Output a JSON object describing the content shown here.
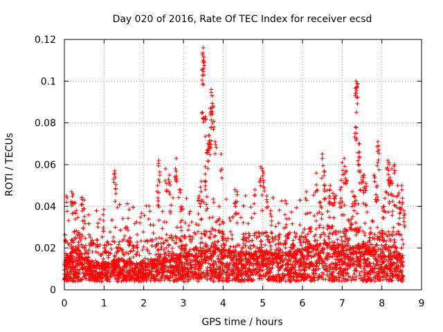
{
  "chart_data": {
    "type": "scatter",
    "title": "Day 020 of 2016, Rate Of TEC Index for receiver ecsd",
    "xlabel": "GPS time / hours",
    "ylabel": "ROTI / TECUs",
    "xlim": [
      0,
      9
    ],
    "ylim": [
      0,
      0.12
    ],
    "xticks": [
      "0",
      "1",
      "2",
      "3",
      "4",
      "5",
      "6",
      "7",
      "8",
      "9"
    ],
    "yticks": [
      "0",
      "0.02",
      "0.04",
      "0.06",
      "0.08",
      "0.1",
      "0.12"
    ],
    "grid": true,
    "marker": "+",
    "series_color": "#ff0000",
    "data_range": [
      0,
      8.55
    ],
    "baseline_envelope": [
      [
        0,
        0.013
      ],
      [
        0.3,
        0.017
      ],
      [
        0.6,
        0.012
      ],
      [
        1.0,
        0.011
      ],
      [
        1.4,
        0.013
      ],
      [
        1.8,
        0.011
      ],
      [
        2.2,
        0.012
      ],
      [
        2.6,
        0.015
      ],
      [
        3.0,
        0.014
      ],
      [
        3.4,
        0.016
      ],
      [
        3.8,
        0.017
      ],
      [
        4.2,
        0.016
      ],
      [
        4.6,
        0.015
      ],
      [
        5.0,
        0.016
      ],
      [
        5.4,
        0.015
      ],
      [
        5.8,
        0.016
      ],
      [
        6.2,
        0.018
      ],
      [
        6.6,
        0.019
      ],
      [
        7.0,
        0.018
      ],
      [
        7.4,
        0.018
      ],
      [
        7.8,
        0.017
      ],
      [
        8.2,
        0.016
      ],
      [
        8.55,
        0.015
      ]
    ],
    "highlights": [
      [
        0.05,
        0.045
      ],
      [
        0.18,
        0.047
      ],
      [
        0.22,
        0.046
      ],
      [
        0.45,
        0.041
      ],
      [
        0.5,
        0.043
      ],
      [
        0.3,
        0.038
      ],
      [
        0.85,
        0.032
      ],
      [
        0.98,
        0.036
      ],
      [
        1.27,
        0.057
      ],
      [
        1.28,
        0.054
      ],
      [
        1.55,
        0.03
      ],
      [
        1.65,
        0.025
      ],
      [
        2.38,
        0.062
      ],
      [
        2.35,
        0.05
      ],
      [
        2.55,
        0.058
      ],
      [
        2.65,
        0.055
      ],
      [
        2.8,
        0.058
      ],
      [
        2.82,
        0.063
      ],
      [
        2.9,
        0.048
      ],
      [
        2.95,
        0.04
      ],
      [
        3.5,
        0.116
      ],
      [
        3.5,
        0.11
      ],
      [
        3.52,
        0.109
      ],
      [
        3.48,
        0.085
      ],
      [
        3.55,
        0.083
      ],
      [
        3.6,
        0.067
      ],
      [
        3.62,
        0.07
      ],
      [
        3.7,
        0.096
      ],
      [
        3.72,
        0.093
      ],
      [
        3.68,
        0.087
      ],
      [
        3.75,
        0.088
      ],
      [
        3.65,
        0.074
      ],
      [
        3.7,
        0.078
      ],
      [
        3.8,
        0.071
      ],
      [
        3.55,
        0.059
      ],
      [
        3.45,
        0.052
      ],
      [
        3.4,
        0.045
      ],
      [
        3.95,
        0.065
      ],
      [
        3.9,
        0.04
      ],
      [
        4.3,
        0.048
      ],
      [
        4.35,
        0.047
      ],
      [
        4.8,
        0.048
      ],
      [
        4.95,
        0.059
      ],
      [
        5.0,
        0.057
      ],
      [
        5.02,
        0.056
      ],
      [
        5.1,
        0.045
      ],
      [
        5.2,
        0.038
      ],
      [
        5.4,
        0.032
      ],
      [
        5.6,
        0.034
      ],
      [
        6.1,
        0.047
      ],
      [
        6.35,
        0.056
      ],
      [
        6.5,
        0.065
      ],
      [
        6.55,
        0.057
      ],
      [
        6.45,
        0.042
      ],
      [
        6.7,
        0.05
      ],
      [
        6.8,
        0.045
      ],
      [
        6.95,
        0.048
      ],
      [
        7.05,
        0.063
      ],
      [
        7.0,
        0.061
      ],
      [
        7.1,
        0.057
      ],
      [
        7.35,
        0.1
      ],
      [
        7.38,
        0.099
      ],
      [
        7.36,
        0.097
      ],
      [
        7.34,
        0.078
      ],
      [
        7.42,
        0.07
      ],
      [
        7.44,
        0.066
      ],
      [
        7.45,
        0.057
      ],
      [
        7.5,
        0.054
      ],
      [
        7.55,
        0.055
      ],
      [
        7.6,
        0.051
      ],
      [
        7.3,
        0.045
      ],
      [
        7.25,
        0.04
      ],
      [
        7.8,
        0.055
      ],
      [
        7.9,
        0.071
      ],
      [
        7.92,
        0.069
      ],
      [
        7.88,
        0.05
      ],
      [
        8.15,
        0.062
      ],
      [
        8.18,
        0.06
      ],
      [
        8.25,
        0.058
      ],
      [
        8.32,
        0.06
      ],
      [
        8.4,
        0.05
      ],
      [
        8.5,
        0.05
      ],
      [
        8.45,
        0.042
      ],
      [
        8.3,
        0.045
      ],
      [
        8.2,
        0.052
      ],
      [
        8.1,
        0.047
      ],
      [
        8.05,
        0.04
      ],
      [
        8.55,
        0.038
      ]
    ]
  }
}
